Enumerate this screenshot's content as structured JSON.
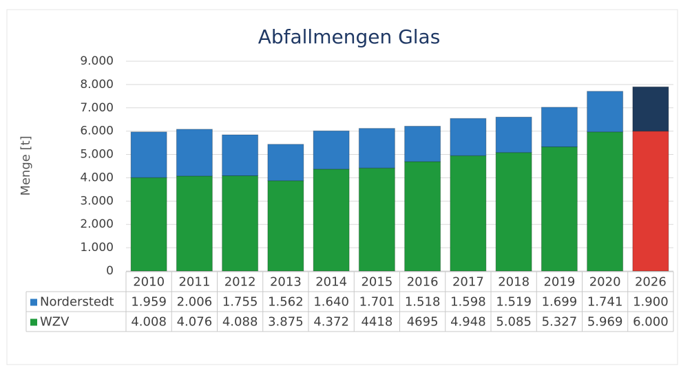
{
  "chart_data": {
    "type": "stacked-bar",
    "title": "Abfallmengen Glas",
    "y_label": "Menge [t]",
    "categories": [
      "2010",
      "2011",
      "2012",
      "2013",
      "2014",
      "2015",
      "2016",
      "2017",
      "2018",
      "2019",
      "2020",
      "2026"
    ],
    "series": [
      {
        "name": "WZV",
        "color": "#1f9a3c",
        "colors": [
          "#1f9a3c",
          "#1f9a3c",
          "#1f9a3c",
          "#1f9a3c",
          "#1f9a3c",
          "#1f9a3c",
          "#1f9a3c",
          "#1f9a3c",
          "#1f9a3c",
          "#1f9a3c",
          "#1f9a3c",
          "#e03a33"
        ],
        "values": [
          4008,
          4076,
          4088,
          3875,
          4372,
          4418,
          4695,
          4948,
          5085,
          5327,
          5969,
          6000
        ],
        "value_labels": [
          "4.008",
          "4.076",
          "4.088",
          "3.875",
          "4.372",
          "4418",
          "4695",
          "4.948",
          "5.085",
          "5.327",
          "5.969",
          "6.000"
        ]
      },
      {
        "name": "Norderstedt",
        "color": "#2e7cc4",
        "colors": [
          "#2e7cc4",
          "#2e7cc4",
          "#2e7cc4",
          "#2e7cc4",
          "#2e7cc4",
          "#2e7cc4",
          "#2e7cc4",
          "#2e7cc4",
          "#2e7cc4",
          "#2e7cc4",
          "#2e7cc4",
          "#1e3a5c"
        ],
        "values": [
          1959,
          2006,
          1755,
          1562,
          1640,
          1701,
          1518,
          1598,
          1519,
          1699,
          1741,
          1900
        ],
        "value_labels": [
          "1.959",
          "2.006",
          "1.755",
          "1.562",
          "1.640",
          "1.701",
          "1.518",
          "1.598",
          "1.519",
          "1.699",
          "1.741",
          "1.900"
        ]
      }
    ],
    "ylim": [
      0,
      9000
    ],
    "yticks": [
      0,
      {
        "value": 1000,
        "label": "1.000"
      },
      {
        "value": 2000,
        "label": "2.000"
      },
      {
        "value": 3000,
        "label": "3.000"
      },
      {
        "value": 4000,
        "label": "4.000"
      },
      {
        "value": 5000,
        "label": "5.000"
      },
      {
        "value": 6000,
        "label": "6.000"
      },
      {
        "value": 7000,
        "label": "7.000"
      },
      {
        "value": 8000,
        "label": "8.000"
      },
      {
        "value": 9000,
        "label": "9.000"
      }
    ],
    "grid": true
  }
}
